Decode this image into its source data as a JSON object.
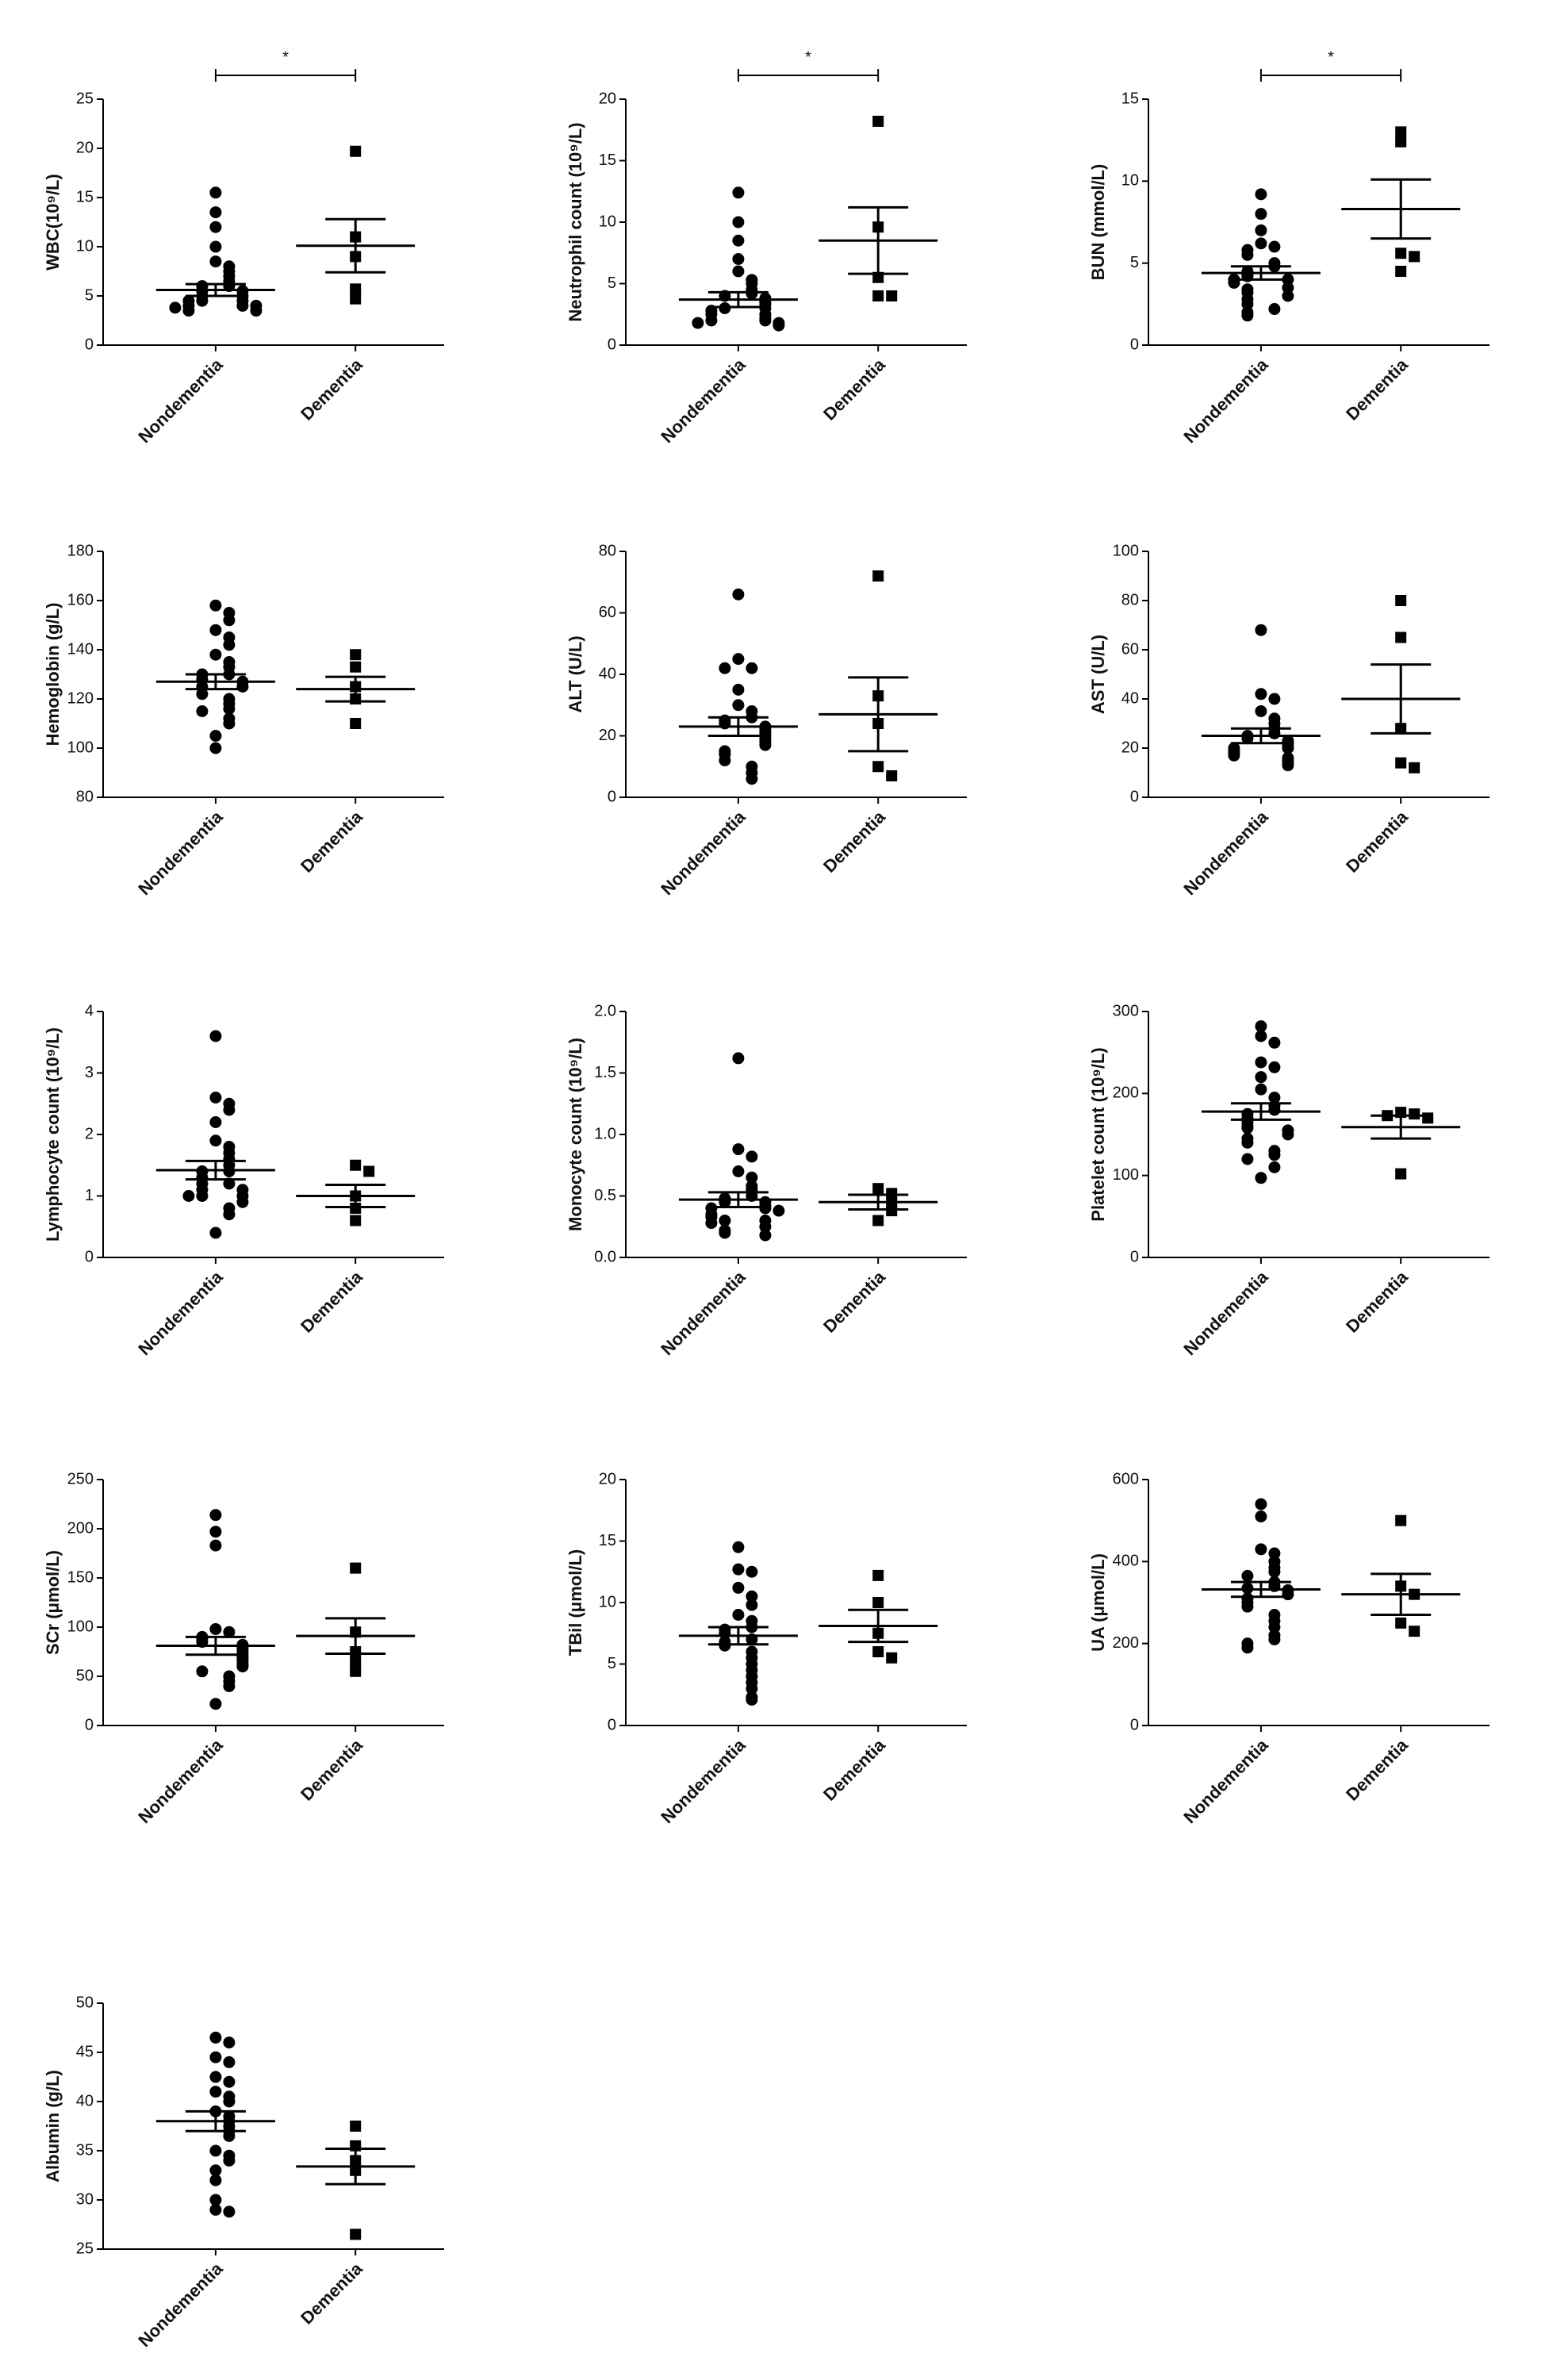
{
  "chart_data": [
    {
      "type": "dotplot",
      "y_label": "WBC(10⁹/L)",
      "categories": [
        "Nondementia",
        "Dementia"
      ],
      "ylim": [
        0,
        25
      ],
      "yticks": [
        0,
        5,
        10,
        15,
        20,
        25
      ],
      "significance": "*",
      "color": "#000000",
      "groups": [
        {
          "marker": "circle",
          "values": [
            15.5,
            13.5,
            12,
            10,
            8.5,
            8,
            7.5,
            7,
            6.5,
            6,
            6,
            5.5,
            5.5,
            5,
            5,
            4.5,
            4.5,
            4.5,
            4,
            4,
            4,
            3.8,
            3.5,
            3.5
          ],
          "mean": 5.6,
          "sem": 0.6
        },
        {
          "marker": "square",
          "values": [
            19.7,
            11,
            9,
            5.7,
            4.7
          ],
          "mean": 10.1,
          "sem": 2.7
        }
      ]
    },
    {
      "type": "dotplot",
      "y_label": "Neutrophil count (10⁹/L)",
      "categories": [
        "Nondementia",
        "Dementia"
      ],
      "ylim": [
        0,
        20
      ],
      "yticks": [
        0,
        5,
        10,
        15,
        20
      ],
      "significance": "*",
      "color": "#000000",
      "groups": [
        {
          "marker": "circle",
          "values": [
            12.4,
            10,
            8.5,
            7,
            6,
            5.3,
            5,
            4.5,
            4.2,
            4,
            3.8,
            3.5,
            3.3,
            3,
            3,
            2.8,
            2.5,
            2.5,
            2.2,
            2,
            2,
            1.8,
            1.8,
            1.6
          ],
          "mean": 3.7,
          "sem": 0.6
        },
        {
          "marker": "square",
          "values": [
            18.2,
            9.6,
            5.5,
            4,
            4
          ],
          "mean": 8.5,
          "sem": 2.7
        }
      ]
    },
    {
      "type": "dotplot",
      "y_label": "BUN (mmol/L)",
      "categories": [
        "Nondementia",
        "Dementia"
      ],
      "ylim": [
        0,
        15
      ],
      "yticks": [
        0,
        5,
        10,
        15
      ],
      "significance": "*",
      "color": "#000000",
      "groups": [
        {
          "marker": "circle",
          "values": [
            9.2,
            8,
            7,
            6.2,
            6,
            5.8,
            5.5,
            5,
            4.8,
            4.5,
            4.3,
            4.2,
            4,
            4,
            3.8,
            3.5,
            3.4,
            3.2,
            3,
            2.8,
            2.5,
            2.2,
            2,
            1.8
          ],
          "mean": 4.4,
          "sem": 0.4
        },
        {
          "marker": "square",
          "values": [
            13,
            12.4,
            5.6,
            5.4,
            4.5
          ],
          "mean": 8.3,
          "sem": 1.8
        }
      ]
    },
    {
      "type": "dotplot",
      "y_label": "Hemoglobin (g/L)",
      "categories": [
        "Nondementia",
        "Dementia"
      ],
      "ylim": [
        80,
        180
      ],
      "yticks": [
        80,
        100,
        120,
        140,
        160,
        180
      ],
      "color": "#000000",
      "groups": [
        {
          "marker": "circle",
          "values": [
            158,
            155,
            152,
            148,
            145,
            142,
            138,
            135,
            133,
            130,
            130,
            128,
            127,
            125,
            125,
            122,
            120,
            118,
            116,
            115,
            112,
            110,
            105,
            100
          ],
          "mean": 127,
          "sem": 3
        },
        {
          "marker": "square",
          "values": [
            138,
            133,
            125,
            120,
            110
          ],
          "mean": 124,
          "sem": 5
        }
      ]
    },
    {
      "type": "dotplot",
      "y_label": "ALT (U/L)",
      "categories": [
        "Nondementia",
        "Dementia"
      ],
      "ylim": [
        0,
        80
      ],
      "yticks": [
        0,
        20,
        40,
        60,
        80
      ],
      "color": "#000000",
      "groups": [
        {
          "marker": "circle",
          "values": [
            66,
            45,
            42,
            42,
            35,
            30,
            28,
            26,
            25,
            24,
            23,
            22,
            21,
            20,
            19,
            18,
            17,
            15,
            14,
            12,
            10,
            8,
            6
          ],
          "mean": 23,
          "sem": 3
        },
        {
          "marker": "square",
          "values": [
            72,
            33,
            24,
            10,
            7
          ],
          "mean": 27,
          "sem": 12
        }
      ]
    },
    {
      "type": "dotplot",
      "y_label": "AST (U/L)",
      "categories": [
        "Nondementia",
        "Dementia"
      ],
      "ylim": [
        0,
        100
      ],
      "yticks": [
        0,
        20,
        40,
        60,
        80,
        100
      ],
      "color": "#000000",
      "groups": [
        {
          "marker": "circle",
          "values": [
            68,
            42,
            40,
            35,
            32,
            30,
            28,
            26,
            25,
            24,
            23,
            22,
            21,
            20,
            20,
            19,
            18,
            17,
            16,
            15,
            14,
            13
          ],
          "mean": 25,
          "sem": 3
        },
        {
          "marker": "square",
          "values": [
            80,
            65,
            28,
            14,
            12
          ],
          "mean": 40,
          "sem": 14
        }
      ]
    },
    {
      "type": "dotplot",
      "y_label": "Lymphocyte count (10⁹/L)",
      "categories": [
        "Nondementia",
        "Dementia"
      ],
      "ylim": [
        0,
        4
      ],
      "yticks": [
        0,
        1,
        2,
        3,
        4
      ],
      "color": "#000000",
      "groups": [
        {
          "marker": "circle",
          "values": [
            3.6,
            2.6,
            2.5,
            2.4,
            2.2,
            1.9,
            1.8,
            1.7,
            1.6,
            1.5,
            1.4,
            1.4,
            1.3,
            1.2,
            1.2,
            1.1,
            1.1,
            1.0,
            1.0,
            1.0,
            0.9,
            0.8,
            0.7,
            0.4
          ],
          "mean": 1.42,
          "sem": 0.15
        },
        {
          "marker": "square",
          "values": [
            1.5,
            1.4,
            1.0,
            0.8,
            0.6
          ],
          "mean": 1.0,
          "sem": 0.18
        }
      ]
    },
    {
      "type": "dotplot",
      "y_label": "Monocyte count (10⁹/L)",
      "categories": [
        "Nondementia",
        "Dementia"
      ],
      "ylim": [
        0,
        2
      ],
      "yticks": [
        {
          "value": 0,
          "label": "0.0"
        },
        0.5,
        {
          "value": 1,
          "label": "1.0"
        },
        1.5,
        {
          "value": 2,
          "label": "2.0"
        }
      ],
      "color": "#000000",
      "groups": [
        {
          "marker": "circle",
          "values": [
            1.62,
            0.88,
            0.82,
            0.7,
            0.65,
            0.58,
            0.55,
            0.5,
            0.48,
            0.45,
            0.45,
            0.42,
            0.4,
            0.4,
            0.38,
            0.35,
            0.33,
            0.3,
            0.3,
            0.28,
            0.25,
            0.22,
            0.2,
            0.18
          ],
          "mean": 0.47,
          "sem": 0.06
        },
        {
          "marker": "square",
          "values": [
            0.56,
            0.52,
            0.45,
            0.38,
            0.3
          ],
          "mean": 0.45,
          "sem": 0.06
        }
      ]
    },
    {
      "type": "dotplot",
      "y_label": "Platelet count (10⁹/L)",
      "categories": [
        "Nondementia",
        "Dementia"
      ],
      "ylim": [
        0,
        300
      ],
      "yticks": [
        0,
        100,
        200,
        300
      ],
      "color": "#000000",
      "groups": [
        {
          "marker": "circle",
          "values": [
            282,
            270,
            262,
            238,
            232,
            220,
            205,
            195,
            185,
            180,
            175,
            170,
            165,
            160,
            158,
            155,
            150,
            145,
            140,
            130,
            125,
            120,
            110,
            97
          ],
          "mean": 178,
          "sem": 10
        },
        {
          "marker": "square",
          "values": [
            177,
            175,
            173,
            170,
            102
          ],
          "mean": 159,
          "sem": 14
        }
      ]
    },
    {
      "type": "dotplot",
      "y_label": "SCr (μmol/L)",
      "categories": [
        "Nondementia",
        "Dementia"
      ],
      "ylim": [
        0,
        250
      ],
      "yticks": [
        0,
        50,
        100,
        150,
        200,
        250
      ],
      "color": "#000000",
      "groups": [
        {
          "marker": "circle",
          "values": [
            214,
            197,
            183,
            98,
            95,
            90,
            88,
            85,
            82,
            80,
            78,
            75,
            72,
            70,
            68,
            65,
            62,
            60,
            55,
            50,
            45,
            40,
            22
          ],
          "mean": 81,
          "sem": 9
        },
        {
          "marker": "square",
          "values": [
            160,
            95,
            75,
            65,
            55
          ],
          "mean": 91,
          "sem": 18
        }
      ]
    },
    {
      "type": "dotplot",
      "y_label": "TBil (μmol/L)",
      "categories": [
        "Nondementia",
        "Dementia"
      ],
      "ylim": [
        0,
        20
      ],
      "yticks": [
        0,
        5,
        10,
        15,
        20
      ],
      "color": "#000000",
      "groups": [
        {
          "marker": "circle",
          "values": [
            14.5,
            12.7,
            12.5,
            11.2,
            10.5,
            9.8,
            9,
            8.5,
            8,
            7.8,
            7.5,
            7,
            6.8,
            6.5,
            6,
            5.5,
            5,
            4.5,
            4,
            3.5,
            3,
            2.3,
            2.1
          ],
          "mean": 7.3,
          "sem": 0.7
        },
        {
          "marker": "square",
          "values": [
            12.2,
            10,
            7.5,
            6,
            5.5
          ],
          "mean": 8.1,
          "sem": 1.3
        }
      ]
    },
    {
      "type": "dotplot",
      "y_label": "UA (μmol/L)",
      "categories": [
        "Nondementia",
        "Dementia"
      ],
      "ylim": [
        0,
        600
      ],
      "yticks": [
        0,
        200,
        400,
        600
      ],
      "color": "#000000",
      "groups": [
        {
          "marker": "circle",
          "values": [
            540,
            510,
            430,
            420,
            400,
            385,
            375,
            365,
            350,
            340,
            335,
            330,
            320,
            310,
            300,
            290,
            270,
            255,
            240,
            220,
            210,
            200,
            190
          ],
          "mean": 332,
          "sem": 18
        },
        {
          "marker": "square",
          "values": [
            500,
            340,
            320,
            250,
            230
          ],
          "mean": 320,
          "sem": 50
        }
      ]
    },
    {
      "type": "dotplot",
      "y_label": "Albumin (g/L)",
      "categories": [
        "Nondementia",
        "Dementia"
      ],
      "ylim": [
        25,
        50
      ],
      "yticks": [
        25,
        30,
        35,
        40,
        45,
        50
      ],
      "color": "#000000",
      "groups": [
        {
          "marker": "circle",
          "values": [
            46.5,
            46,
            44.5,
            44,
            42.5,
            42,
            41,
            40.5,
            40,
            39,
            38.5,
            38,
            37.5,
            37,
            36.5,
            35,
            34.5,
            34,
            33,
            32,
            30,
            29,
            28.8
          ],
          "mean": 38,
          "sem": 1
        },
        {
          "marker": "square",
          "values": [
            37.5,
            35.5,
            34,
            33,
            26.5
          ],
          "mean": 33.4,
          "sem": 1.8
        }
      ]
    }
  ]
}
